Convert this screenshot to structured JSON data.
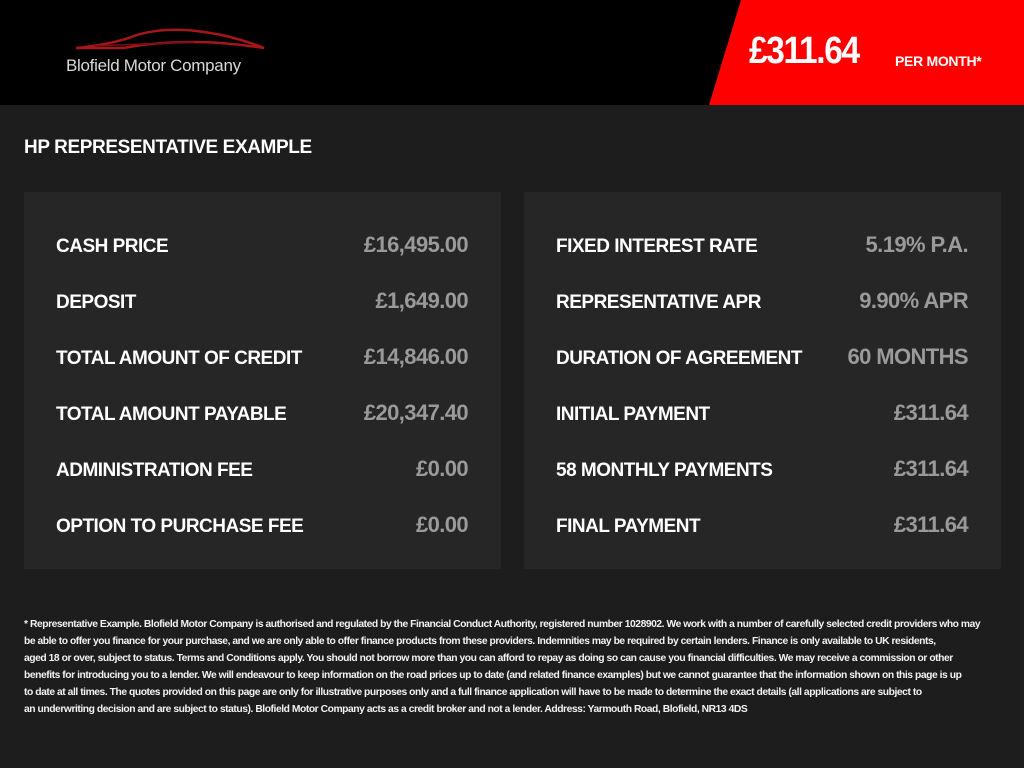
{
  "header": {
    "logo_text": "Blofield Motor Company",
    "price": "£311.64",
    "price_suffix": "PER MONTH*",
    "accent": "#ff0000"
  },
  "section_title": "HP REPRESENTATIVE EXAMPLE",
  "left_panel": [
    {
      "label": "CASH PRICE",
      "value": "£16,495.00"
    },
    {
      "label": "DEPOSIT",
      "value": "£1,649.00"
    },
    {
      "label": "TOTAL AMOUNT OF CREDIT",
      "value": "£14,846.00"
    },
    {
      "label": "TOTAL AMOUNT PAYABLE",
      "value": "£20,347.40"
    },
    {
      "label": "ADMINISTRATION FEE",
      "value": "£0.00"
    },
    {
      "label": "OPTION TO PURCHASE FEE",
      "value": "£0.00"
    }
  ],
  "right_panel": [
    {
      "label": "FIXED INTEREST RATE",
      "value": "5.19% P.A."
    },
    {
      "label": "REPRESENTATIVE APR",
      "value": "9.90% APR"
    },
    {
      "label": "DURATION OF AGREEMENT",
      "value": "60 MONTHS"
    },
    {
      "label": "INITIAL PAYMENT",
      "value": "£311.64"
    },
    {
      "label": "58 MONTHLY PAYMENTS",
      "value": "£311.64"
    },
    {
      "label": "FINAL PAYMENT",
      "value": "£311.64"
    }
  ],
  "disclaimer": [
    "* Representative Example. Blofield Motor Company is authorised and regulated by the Financial Conduct Authority, registered number 1028902. We work with a number of carefully selected credit providers who may",
    "be able to offer you finance for your purchase, and we are only able to offer finance products from these providers. Indemnities may be required by certain lenders. Finance is only available to UK residents,",
    "aged 18 or over, subject to status. Terms and Conditions apply. You should not borrow more than you can afford to repay as doing so can cause you financial difficulties. We may receive a commission or other",
    "benefits for introducing you to a lender. We will endeavour to keep information on the road prices up to date (and related finance examples) but we cannot guarantee that the information shown on this page is up",
    "to date at all times. The quotes provided on this page are only for illustrative purposes only and a full finance application will have to be made to determine the exact details (all applications are subject to",
    "an underwriting decision and are subject to status). Blofield Motor Company acts as a credit broker and not a lender. Address: Yarmouth Road, Blofield, NR13 4DS"
  ]
}
